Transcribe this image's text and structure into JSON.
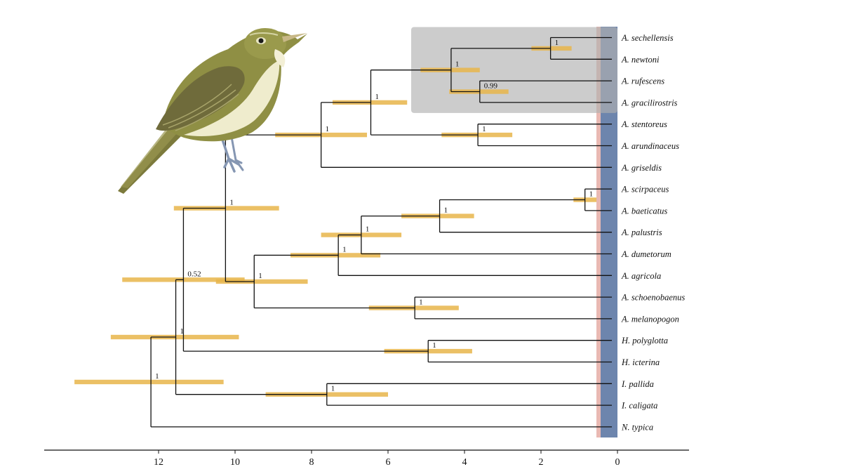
{
  "tree": {
    "tips": [
      "A. sechellensis",
      "A. newtoni",
      "A. rufescens",
      "A. gracilirostris",
      "A. stentoreus",
      "A. arundinaceus",
      "A. griseldis",
      "A. scirpaceus",
      "A. baeticatus",
      "A. palustris",
      "A. dumetorum",
      "A. agricola",
      "A. schoenobaenus",
      "A. melanopogon",
      "H. polyglotta",
      "H. icterina",
      "I. pallida",
      "I. caligata",
      "N. typica"
    ],
    "nodes": [
      {
        "id": "n_sech_newt",
        "age": 1.75,
        "children": [
          0,
          1
        ],
        "support": "1",
        "hpd": [
          2.25,
          1.2
        ]
      },
      {
        "id": "n_ruf_grac",
        "age": 3.6,
        "children": [
          2,
          3
        ],
        "support": "0.99",
        "hpd": [
          4.4,
          2.85
        ]
      },
      {
        "id": "n_island",
        "age": 4.35,
        "children": [
          "n_sech_newt",
          "n_ruf_grac"
        ],
        "support": "1",
        "hpd": [
          5.15,
          3.6
        ]
      },
      {
        "id": "n_sten_arun",
        "age": 3.65,
        "children": [
          4,
          5
        ],
        "support": "1",
        "hpd": [
          4.6,
          2.75
        ]
      },
      {
        "id": "n_great",
        "age": 6.45,
        "children": [
          "n_island",
          "n_sten_arun"
        ],
        "support": "1",
        "hpd": [
          7.45,
          5.5
        ]
      },
      {
        "id": "n_large",
        "age": 7.75,
        "children": [
          "n_great",
          6
        ],
        "support": "1",
        "hpd": [
          8.95,
          6.55
        ]
      },
      {
        "id": "n_scir_baet",
        "age": 0.85,
        "children": [
          7,
          8
        ],
        "support": "1",
        "hpd": [
          1.15,
          0.55
        ]
      },
      {
        "id": "n_palu",
        "age": 4.65,
        "children": [
          "n_scir_baet",
          9
        ],
        "support": "1",
        "hpd": [
          5.65,
          3.75
        ]
      },
      {
        "id": "n_dume",
        "age": 6.7,
        "children": [
          "n_palu",
          10
        ],
        "support": "1",
        "hpd": [
          7.75,
          5.65
        ]
      },
      {
        "id": "n_agri",
        "age": 7.3,
        "children": [
          "n_dume",
          11
        ],
        "support": "1",
        "hpd": [
          8.55,
          6.2
        ]
      },
      {
        "id": "n_schoe",
        "age": 5.3,
        "children": [
          12,
          13
        ],
        "support": "1",
        "hpd": [
          6.5,
          4.15
        ]
      },
      {
        "id": "n_small",
        "age": 9.5,
        "children": [
          "n_agri",
          "n_schoe"
        ],
        "support": "1",
        "hpd": [
          10.5,
          8.1
        ]
      },
      {
        "id": "n_acro",
        "age": 10.25,
        "children": [
          "n_large",
          "n_small"
        ],
        "support": "1",
        "hpd": [
          11.6,
          8.85
        ]
      },
      {
        "id": "n_hipp",
        "age": 4.95,
        "children": [
          14,
          15
        ],
        "support": "1",
        "hpd": [
          6.1,
          3.8
        ]
      },
      {
        "id": "n_acro_hipp",
        "age": 11.35,
        "children": [
          "n_acro",
          "n_hipp"
        ],
        "support": "0.52",
        "hpd": [
          12.95,
          9.75
        ]
      },
      {
        "id": "n_idun",
        "age": 7.6,
        "children": [
          16,
          17
        ],
        "support": "1",
        "hpd": [
          9.2,
          6.0
        ]
      },
      {
        "id": "n_ingroup",
        "age": 11.55,
        "children": [
          "n_acro_hipp",
          "n_idun"
        ],
        "support": "1",
        "hpd": [
          13.25,
          9.9
        ]
      },
      {
        "id": "n_root",
        "age": 12.2,
        "children": [
          "n_ingroup",
          18
        ],
        "support": "1",
        "hpd": [
          14.2,
          10.3
        ]
      }
    ],
    "highlight_tips": [
      0,
      3
    ],
    "axis": {
      "ticks": [
        12,
        10,
        8,
        6,
        4,
        2,
        0
      ],
      "range": [
        15.0,
        -1.8
      ]
    }
  },
  "colors": {
    "branch": "#111111",
    "hpd": "#e8b54a",
    "highlight_box": "#b0b0b0",
    "present_band": "#6d85ad",
    "present_band_edge": "#e9b9b3",
    "bird_body": "#8a8a3e",
    "bird_belly": "#efeccd",
    "bird_wing": "#6e6a3a",
    "bird_leg": "#8596b2"
  }
}
